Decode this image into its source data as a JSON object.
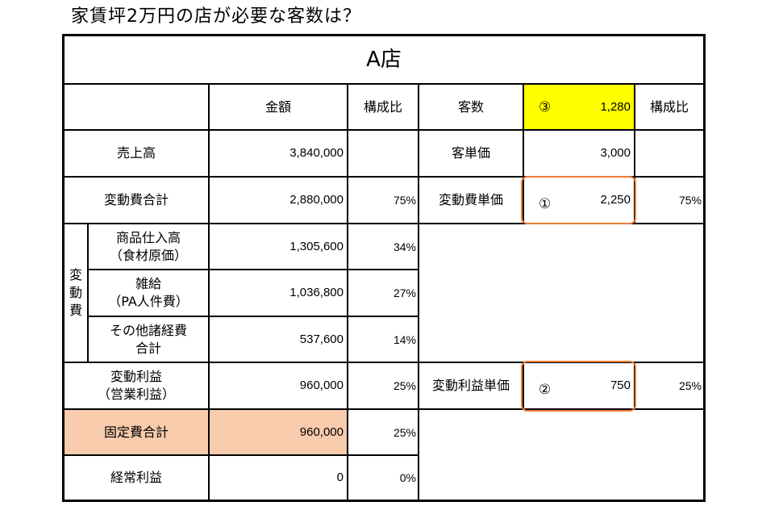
{
  "heading": "家賃坪2万円の店が必要な客数は？",
  "store": "A店",
  "columns": {
    "amount": "金額",
    "ratio": "構成比",
    "customers": "客数",
    "ratio2": "構成比"
  },
  "customers": {
    "marker": "③",
    "value": "1,280"
  },
  "rows": {
    "sales": {
      "label": "売上高",
      "amount": "3,840,000",
      "right_label": "客単価",
      "right_value": "3,000"
    },
    "variable_total": {
      "label": "変動費合計",
      "amount": "2,880,000",
      "ratio": "75%",
      "right_label": "変動費単価",
      "marker": "①",
      "right_value": "2,250",
      "right_ratio": "75%"
    },
    "purchases": {
      "label1": "商品仕入高",
      "label2": "（食材原価）",
      "amount": "1,305,600",
      "ratio": "34%"
    },
    "wages": {
      "label1": "雑給",
      "label2": "（PA人件費）",
      "amount": "1,036,800",
      "ratio": "27%"
    },
    "other": {
      "label1": "その他諸経費",
      "label2": "合計",
      "amount": "537,600",
      "ratio": "14%"
    },
    "contribution": {
      "label1": "変動利益",
      "label2": "（営業利益）",
      "amount": "960,000",
      "ratio": "25%",
      "right_label": "変動利益単価",
      "marker": "②",
      "right_value": "750",
      "right_ratio": "25%"
    },
    "fixed": {
      "label": "固定費合計",
      "amount": "960,000",
      "ratio": "25%"
    },
    "ordinary": {
      "label": "経常利益",
      "amount": "0",
      "ratio": "0%"
    }
  },
  "side_group": {
    "c1": "変",
    "c2": "動",
    "c3": "費"
  },
  "colors": {
    "highlight_yellow": "#ffff00",
    "highlight_peach": "#f8cbad",
    "callout_orange": "#ed7d31"
  }
}
